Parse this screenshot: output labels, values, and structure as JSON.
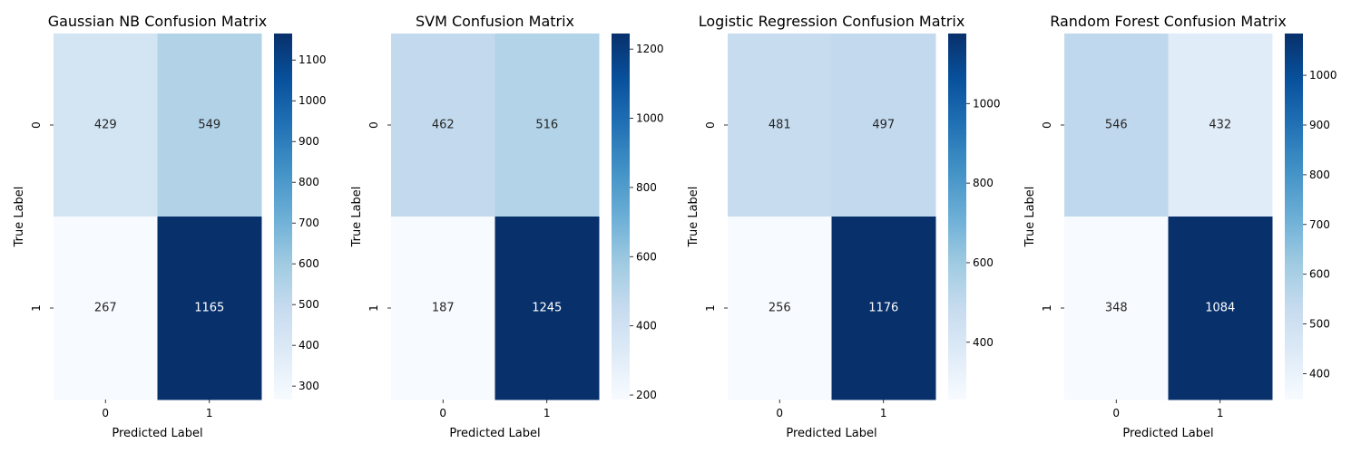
{
  "chart_data": [
    {
      "type": "heatmap",
      "title": "Gaussian NB Confusion Matrix",
      "xlabel": "Predicted Label",
      "ylabel": "True Label",
      "x_categories": [
        "0",
        "1"
      ],
      "y_categories": [
        "0",
        "1"
      ],
      "values": [
        [
          429,
          549
        ],
        [
          267,
          1165
        ]
      ],
      "colormap": "Blues",
      "colorbar": {
        "range": [
          267,
          1165
        ],
        "ticks": [
          300,
          400,
          500,
          600,
          700,
          800,
          900,
          1000,
          1100
        ]
      }
    },
    {
      "type": "heatmap",
      "title": "SVM Confusion Matrix",
      "xlabel": "Predicted Label",
      "ylabel": "True Label",
      "x_categories": [
        "0",
        "1"
      ],
      "y_categories": [
        "0",
        "1"
      ],
      "values": [
        [
          462,
          516
        ],
        [
          187,
          1245
        ]
      ],
      "colormap": "Blues",
      "colorbar": {
        "range": [
          187,
          1245
        ],
        "ticks": [
          200,
          400,
          600,
          800,
          1000,
          1200
        ]
      }
    },
    {
      "type": "heatmap",
      "title": "Logistic Regression Confusion Matrix",
      "xlabel": "Predicted Label",
      "ylabel": "True Label",
      "x_categories": [
        "0",
        "1"
      ],
      "y_categories": [
        "0",
        "1"
      ],
      "values": [
        [
          481,
          497
        ],
        [
          256,
          1176
        ]
      ],
      "colormap": "Blues",
      "colorbar": {
        "range": [
          256,
          1176
        ],
        "ticks": [
          400,
          600,
          800,
          1000
        ]
      }
    },
    {
      "type": "heatmap",
      "title": "Random Forest Confusion Matrix",
      "xlabel": "Predicted Label",
      "ylabel": "True Label",
      "x_categories": [
        "0",
        "1"
      ],
      "y_categories": [
        "0",
        "1"
      ],
      "values": [
        [
          546,
          432
        ],
        [
          348,
          1084
        ]
      ],
      "colormap": "Blues",
      "colorbar": {
        "range": [
          348,
          1084
        ],
        "ticks": [
          400,
          500,
          600,
          700,
          800,
          900,
          1000
        ]
      }
    }
  ]
}
